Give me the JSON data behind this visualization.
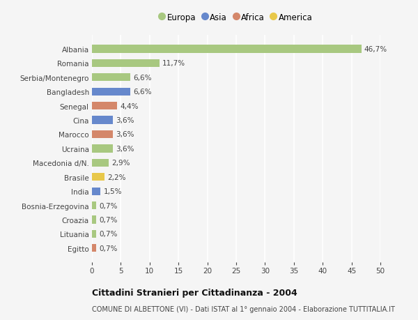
{
  "title": "Cittadini Stranieri per Cittadinanza - 2004",
  "subtitle": "COMUNE DI ALBETTONE (VI) - Dati ISTAT al 1° gennaio 2004 - Elaborazione TUTTITALIA.IT",
  "categories": [
    "Albania",
    "Romania",
    "Serbia/Montenegro",
    "Bangladesh",
    "Senegal",
    "Cina",
    "Marocco",
    "Ucraina",
    "Macedonia d/N.",
    "Brasile",
    "India",
    "Bosnia-Erzegovina",
    "Croazia",
    "Lituania",
    "Egitto"
  ],
  "values": [
    46.7,
    11.7,
    6.6,
    6.6,
    4.4,
    3.6,
    3.6,
    3.6,
    2.9,
    2.2,
    1.5,
    0.7,
    0.7,
    0.7,
    0.7
  ],
  "labels": [
    "46,7%",
    "11,7%",
    "6,6%",
    "6,6%",
    "4,4%",
    "3,6%",
    "3,6%",
    "3,6%",
    "2,9%",
    "2,2%",
    "1,5%",
    "0,7%",
    "0,7%",
    "0,7%",
    "0,7%"
  ],
  "continent": [
    "Europa",
    "Europa",
    "Europa",
    "Asia",
    "Africa",
    "Asia",
    "Africa",
    "Europa",
    "Europa",
    "America",
    "Asia",
    "Europa",
    "Europa",
    "Europa",
    "Africa"
  ],
  "colors": {
    "Europa": "#a8c880",
    "Asia": "#6688cc",
    "Africa": "#d4876a",
    "America": "#e8c84a"
  },
  "legend_order": [
    "Europa",
    "Asia",
    "Africa",
    "America"
  ],
  "xlim": [
    0,
    50
  ],
  "xticks": [
    0,
    5,
    10,
    15,
    20,
    25,
    30,
    35,
    40,
    45,
    50
  ],
  "background_color": "#f5f5f5",
  "plot_bg_color": "#f5f5f5",
  "grid_color": "#ffffff",
  "bar_height": 0.55,
  "label_fontsize": 7.5,
  "tick_fontsize": 7.5,
  "legend_fontsize": 8.5,
  "title_fontsize": 9,
  "subtitle_fontsize": 7
}
